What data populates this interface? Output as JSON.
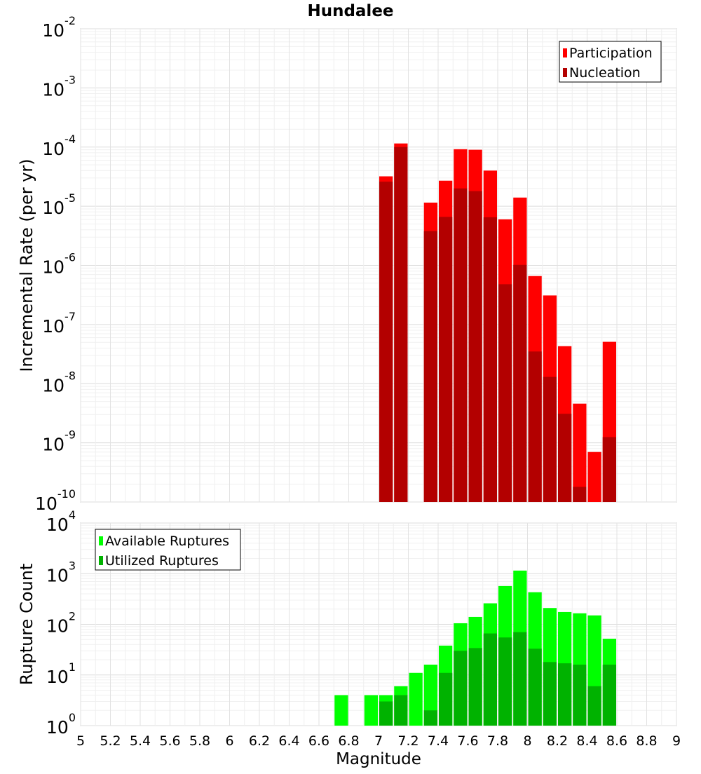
{
  "chart_data": [
    {
      "type": "bar",
      "title": "Hundalee",
      "ylabel": "Incremental Rate (per yr)",
      "xlabel": "",
      "xlim": [
        5,
        9
      ],
      "ylim": [
        1e-10,
        0.01
      ],
      "yscale": "log",
      "grid": true,
      "legend_position": "top-right",
      "bin_width": 0.1,
      "x": [
        7.05,
        7.15,
        7.35,
        7.45,
        7.55,
        7.65,
        7.75,
        7.85,
        7.95,
        8.05,
        8.15,
        8.25,
        8.35,
        8.45,
        8.55
      ],
      "series": [
        {
          "name": "Participation",
          "color": "#ff0000",
          "values": [
            3.2e-05,
            0.000115,
            1.15e-05,
            2.7e-05,
            9.2e-05,
            9e-05,
            4e-05,
            6e-06,
            1.4e-05,
            6.6e-07,
            3.1e-07,
            4.3e-08,
            4.6e-09,
            7e-10,
            5.1e-08
          ]
        },
        {
          "name": "Nucleation",
          "color": "#b30000",
          "values": [
            2.6e-05,
            0.0001,
            3.8e-06,
            6.6e-06,
            2e-05,
            1.8e-05,
            6.5e-06,
            4.8e-07,
            1.02e-06,
            3.5e-08,
            1.3e-08,
            3.1e-09,
            1.8e-10,
            null,
            1.25e-09
          ]
        }
      ]
    },
    {
      "type": "bar",
      "title": "",
      "ylabel": "Rupture Count",
      "xlabel": "Magnitude",
      "xlim": [
        5,
        9
      ],
      "ylim": [
        1,
        10000
      ],
      "yscale": "log",
      "grid": true,
      "legend_position": "top-left",
      "bin_width": 0.1,
      "x_ticks": [
        5,
        5.2,
        5.4,
        5.6,
        5.8,
        6,
        6.2,
        6.4,
        6.6,
        6.8,
        7,
        7.2,
        7.4,
        7.6,
        7.8,
        8,
        8.2,
        8.4,
        8.6,
        8.8,
        9
      ],
      "x": [
        6.75,
        6.95,
        7.05,
        7.15,
        7.25,
        7.35,
        7.45,
        7.55,
        7.65,
        7.75,
        7.85,
        7.95,
        8.05,
        8.15,
        8.25,
        8.35,
        8.45,
        8.55
      ],
      "series": [
        {
          "name": "Available Ruptures",
          "color": "#00ff00",
          "values": [
            4,
            4,
            4,
            6,
            11,
            16,
            38,
            105,
            140,
            260,
            570,
            1150,
            430,
            210,
            175,
            165,
            150,
            52
          ]
        },
        {
          "name": "Utilized Ruptures",
          "color": "#00b200",
          "values": [
            null,
            null,
            3,
            4,
            null,
            2,
            11,
            30,
            34,
            66,
            55,
            70,
            33,
            18,
            17,
            16,
            6,
            16
          ]
        }
      ]
    }
  ]
}
